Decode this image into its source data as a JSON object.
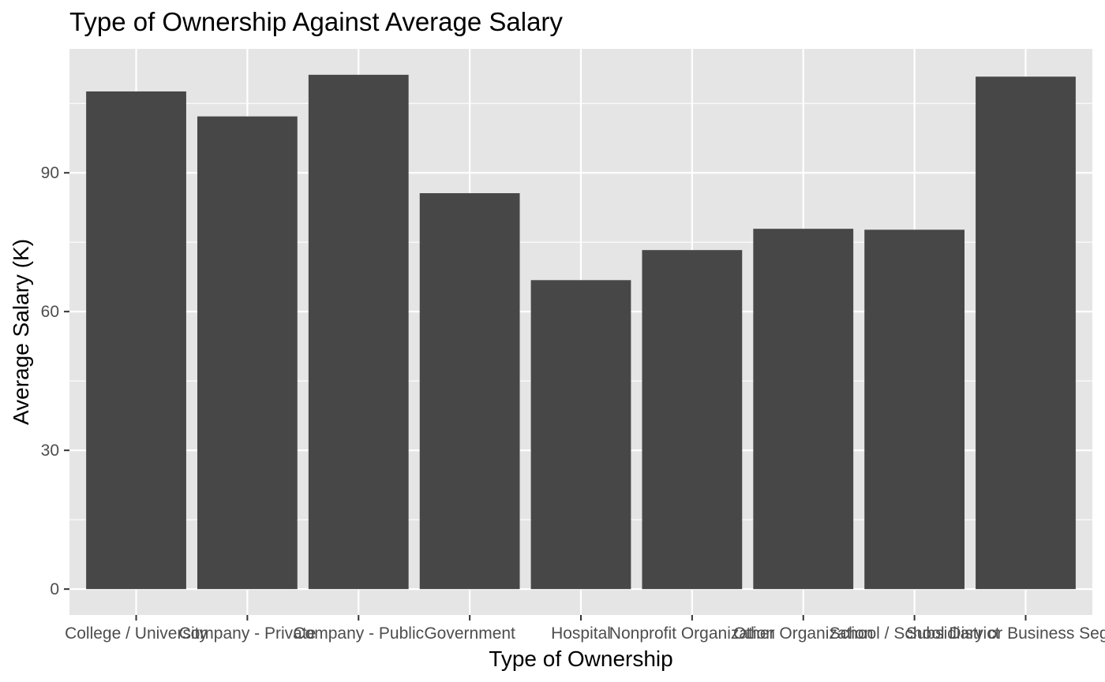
{
  "chart_data": {
    "type": "bar",
    "title": "Type of Ownership Against Average Salary",
    "xlabel": "Type of Ownership",
    "ylabel": "Average Salary (K)",
    "categories": [
      "College / University",
      "Company - Private",
      "Company - Public",
      "Government",
      "Hospital",
      "Nonprofit Organization",
      "Other Organization",
      "School / School District",
      "Subsidiary or Business Segment"
    ],
    "values": [
      107.6,
      102.2,
      111.2,
      85.6,
      66.8,
      73.3,
      77.9,
      77.7,
      110.8
    ],
    "ylim": [
      -5.6,
      116.8
    ],
    "yticks": [
      0,
      30,
      60,
      90
    ],
    "ytick_labels": [
      "0",
      "30",
      "60",
      "90"
    ],
    "grid": true,
    "colors": {
      "panel": "#e5e5e5",
      "grid": "#ffffff",
      "bar": "#474747",
      "tick_text": "#4d4d4d",
      "text": "#000000"
    }
  }
}
